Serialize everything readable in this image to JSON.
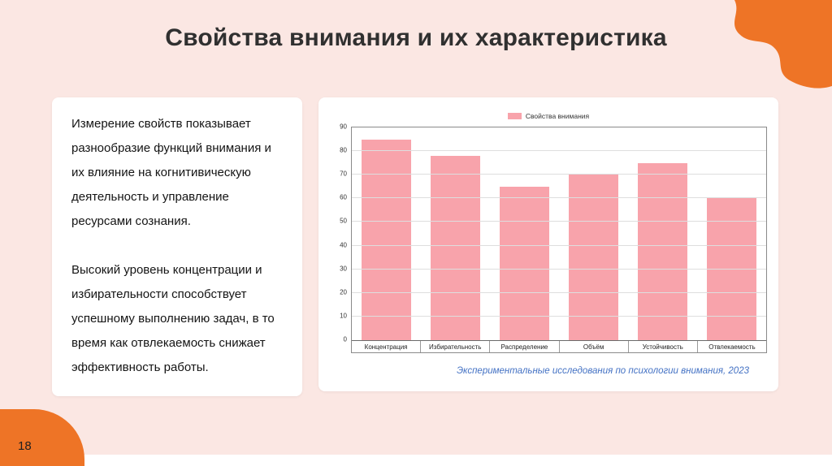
{
  "slide": {
    "title": "Свойства внимания и их характеристика",
    "page_number": "18",
    "colors": {
      "background": "#fbe7e3",
      "accent_orange": "#ee7426",
      "bar_pink": "#f8a3ab",
      "caption_blue": "#4472c4"
    },
    "text_card": {
      "paragraph1": "Измерение свойств показывает разнообразие функций внимания и их влияние на когнитивическую деятельность и управление ресурсами сознания.",
      "paragraph2": "Высокий уровень концентрации и избирательности способствует успешному выполнению задач, в то время как отвлекаемость снижает эффективность работы."
    },
    "chart_caption": "Экспериментальные исследования по психологии внимания, 2023"
  },
  "chart_data": {
    "type": "bar",
    "title": "",
    "legend": "Свойства внимания",
    "legend_position": "top",
    "categories": [
      "Концентрация",
      "Избирательность",
      "Распределение",
      "Объём",
      "Устойчивость",
      "Отвлекаемость"
    ],
    "values": [
      85,
      78,
      65,
      70,
      75,
      60
    ],
    "xlabel": "",
    "ylabel": "",
    "ylim": [
      0,
      90
    ],
    "ytick_step": 10,
    "grid": true,
    "bar_color": "#f8a3ab"
  }
}
